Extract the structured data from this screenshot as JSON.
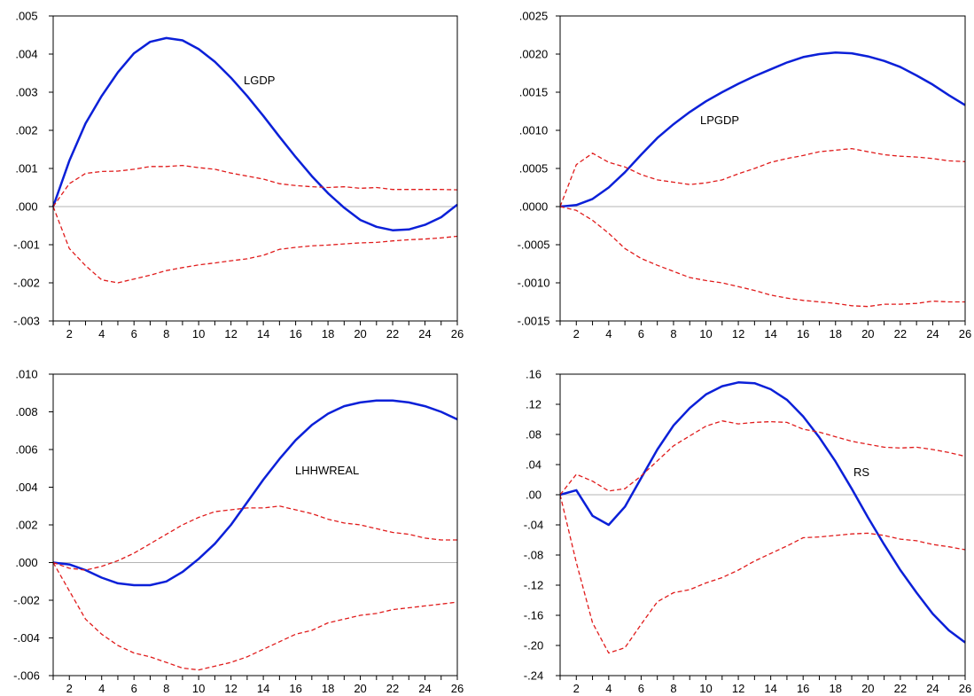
{
  "colors": {
    "response": "#0b20d8",
    "band": "#e01b1b",
    "axis": "#000000",
    "zero_line": "#b4b4b4"
  },
  "chart_data": [
    {
      "type": "line",
      "label": "LGDP",
      "x": [
        1,
        2,
        3,
        4,
        5,
        6,
        7,
        8,
        9,
        10,
        11,
        12,
        13,
        14,
        15,
        16,
        17,
        18,
        19,
        20,
        21,
        22,
        23,
        24,
        25,
        26
      ],
      "x_tick_labels": [
        "2",
        "4",
        "6",
        "8",
        "10",
        "12",
        "14",
        "16",
        "18",
        "20",
        "22",
        "24",
        "26"
      ],
      "ylim": [
        -0.003,
        0.005
      ],
      "y_tick_labels": [
        ".005",
        ".004",
        ".003",
        ".002",
        ".001",
        ".000",
        "-.001",
        "-.002",
        "-.003"
      ],
      "y_tick_values": [
        0.005,
        0.004,
        0.003,
        0.002,
        0.001,
        0.0,
        -0.001,
        -0.002,
        -0.003
      ],
      "series": [
        {
          "role": "response",
          "style": "solid",
          "values": [
            0.0,
            0.0012,
            0.00218,
            0.0029,
            0.00352,
            0.00402,
            0.00432,
            0.00442,
            0.00436,
            0.00413,
            0.0038,
            0.00338,
            0.0029,
            0.00238,
            0.00183,
            0.0013,
            0.0008,
            0.00035,
            -3e-05,
            -0.00035,
            -0.00053,
            -0.00062,
            -0.0006,
            -0.00048,
            -0.00028,
            5e-05
          ]
        },
        {
          "role": "upper_band",
          "style": "dashed",
          "values": [
            0.0,
            0.0006,
            0.00087,
            0.00092,
            0.00093,
            0.00098,
            0.00105,
            0.00105,
            0.00108,
            0.00102,
            0.00098,
            0.00088,
            0.0008,
            0.00072,
            0.0006,
            0.00055,
            0.00052,
            0.0005,
            0.00052,
            0.00048,
            0.0005,
            0.00045,
            0.00045,
            0.00045,
            0.00045,
            0.00044
          ]
        },
        {
          "role": "lower_band",
          "style": "dashed",
          "values": [
            0.0,
            -0.0011,
            -0.00155,
            -0.00192,
            -0.002,
            -0.0019,
            -0.0018,
            -0.00168,
            -0.0016,
            -0.00153,
            -0.00148,
            -0.00142,
            -0.00137,
            -0.00128,
            -0.00112,
            -0.00107,
            -0.00103,
            -0.00101,
            -0.00098,
            -0.00095,
            -0.00094,
            -0.0009,
            -0.00087,
            -0.00085,
            -0.00082,
            -0.00078
          ]
        }
      ]
    },
    {
      "type": "line",
      "label": "LPGDP",
      "x": [
        1,
        2,
        3,
        4,
        5,
        6,
        7,
        8,
        9,
        10,
        11,
        12,
        13,
        14,
        15,
        16,
        17,
        18,
        19,
        20,
        21,
        22,
        23,
        24,
        25,
        26
      ],
      "x_tick_labels": [
        "2",
        "4",
        "6",
        "8",
        "10",
        "12",
        "14",
        "16",
        "18",
        "20",
        "22",
        "24",
        "26"
      ],
      "ylim": [
        -0.0015,
        0.0025
      ],
      "y_tick_labels": [
        ".0025",
        ".0020",
        ".0015",
        ".0010",
        ".0005",
        ".0000",
        "-.0005",
        "-.0010",
        "-.0015"
      ],
      "y_tick_values": [
        0.0025,
        0.002,
        0.0015,
        0.001,
        0.0005,
        0.0,
        -0.0005,
        -0.001,
        -0.0015
      ],
      "series": [
        {
          "role": "response",
          "style": "solid",
          "values": [
            0.0,
            2e-05,
            0.0001,
            0.00025,
            0.00045,
            0.00068,
            0.0009,
            0.00108,
            0.00124,
            0.00138,
            0.0015,
            0.00161,
            0.00171,
            0.0018,
            0.00189,
            0.00196,
            0.002,
            0.00202,
            0.00201,
            0.00197,
            0.00191,
            0.00183,
            0.00172,
            0.0016,
            0.00146,
            0.00133
          ]
        },
        {
          "role": "upper_band",
          "style": "dashed",
          "values": [
            0.0,
            0.00055,
            0.0007,
            0.00058,
            0.00052,
            0.00042,
            0.00035,
            0.00032,
            0.00029,
            0.00031,
            0.00035,
            0.00043,
            0.0005,
            0.00058,
            0.00063,
            0.00067,
            0.00072,
            0.00074,
            0.00076,
            0.00072,
            0.00068,
            0.00066,
            0.00065,
            0.00063,
            0.0006,
            0.00059
          ]
        },
        {
          "role": "lower_band",
          "style": "dashed",
          "values": [
            0.0,
            -5e-05,
            -0.00018,
            -0.00035,
            -0.00055,
            -0.00068,
            -0.00077,
            -0.00085,
            -0.00093,
            -0.00097,
            -0.001,
            -0.00105,
            -0.0011,
            -0.00116,
            -0.0012,
            -0.00123,
            -0.00125,
            -0.00127,
            -0.0013,
            -0.00131,
            -0.00128,
            -0.00128,
            -0.00127,
            -0.00124,
            -0.00125,
            -0.00125
          ]
        }
      ]
    },
    {
      "type": "line",
      "label": "LHHWREAL",
      "x": [
        1,
        2,
        3,
        4,
        5,
        6,
        7,
        8,
        9,
        10,
        11,
        12,
        13,
        14,
        15,
        16,
        17,
        18,
        19,
        20,
        21,
        22,
        23,
        24,
        25,
        26
      ],
      "x_tick_labels": [
        "2",
        "4",
        "6",
        "8",
        "10",
        "12",
        "14",
        "16",
        "18",
        "20",
        "22",
        "24",
        "26"
      ],
      "ylim": [
        -0.006,
        0.01
      ],
      "y_tick_labels": [
        ".010",
        ".008",
        ".006",
        ".004",
        ".002",
        ".000",
        "-.002",
        "-.004",
        "-.006"
      ],
      "y_tick_values": [
        0.01,
        0.008,
        0.006,
        0.004,
        0.002,
        0.0,
        -0.002,
        -0.004,
        -0.006
      ],
      "series": [
        {
          "role": "response",
          "style": "solid",
          "values": [
            0.0,
            -0.0001,
            -0.0004,
            -0.0008,
            -0.0011,
            -0.0012,
            -0.0012,
            -0.001,
            -0.0005,
            0.0002,
            0.001,
            0.002,
            0.0032,
            0.0044,
            0.0055,
            0.0065,
            0.0073,
            0.0079,
            0.0083,
            0.0085,
            0.0086,
            0.0086,
            0.0085,
            0.0083,
            0.008,
            0.0076
          ]
        },
        {
          "role": "upper_band",
          "style": "dashed",
          "values": [
            0.0,
            -0.0003,
            -0.0004,
            -0.0002,
            0.0001,
            0.0005,
            0.001,
            0.0015,
            0.002,
            0.0024,
            0.0027,
            0.0028,
            0.0029,
            0.0029,
            0.003,
            0.0028,
            0.0026,
            0.0023,
            0.0021,
            0.002,
            0.0018,
            0.0016,
            0.0015,
            0.0013,
            0.0012,
            0.0012
          ]
        },
        {
          "role": "lower_band",
          "style": "dashed",
          "values": [
            0.0,
            -0.0015,
            -0.003,
            -0.0038,
            -0.0044,
            -0.0048,
            -0.005,
            -0.0053,
            -0.0056,
            -0.0057,
            -0.0055,
            -0.0053,
            -0.005,
            -0.0046,
            -0.0042,
            -0.0038,
            -0.0036,
            -0.0032,
            -0.003,
            -0.0028,
            -0.0027,
            -0.0025,
            -0.0024,
            -0.0023,
            -0.0022,
            -0.0021
          ]
        }
      ]
    },
    {
      "type": "line",
      "label": "RS",
      "x": [
        1,
        2,
        3,
        4,
        5,
        6,
        7,
        8,
        9,
        10,
        11,
        12,
        13,
        14,
        15,
        16,
        17,
        18,
        19,
        20,
        21,
        22,
        23,
        24,
        25,
        26
      ],
      "x_tick_labels": [
        "2",
        "4",
        "6",
        "8",
        "10",
        "12",
        "14",
        "16",
        "18",
        "20",
        "22",
        "24",
        "26"
      ],
      "ylim": [
        -0.24,
        0.16
      ],
      "y_tick_labels": [
        ".16",
        ".12",
        ".08",
        ".04",
        ".00",
        "-.04",
        "-.08",
        "-.12",
        "-.16",
        "-.20",
        "-.24"
      ],
      "y_tick_values": [
        0.16,
        0.12,
        0.08,
        0.04,
        0.0,
        -0.04,
        -0.08,
        -0.12,
        -0.16,
        -0.2,
        -0.24
      ],
      "series": [
        {
          "role": "response",
          "style": "solid",
          "values": [
            0.0,
            0.006,
            -0.028,
            -0.04,
            -0.016,
            0.022,
            0.06,
            0.092,
            0.115,
            0.133,
            0.144,
            0.149,
            0.148,
            0.14,
            0.126,
            0.104,
            0.076,
            0.044,
            0.008,
            -0.03,
            -0.066,
            -0.1,
            -0.13,
            -0.158,
            -0.18,
            -0.196
          ]
        },
        {
          "role": "upper_band",
          "style": "dashed",
          "values": [
            0.0,
            0.027,
            0.018,
            0.005,
            0.008,
            0.025,
            0.045,
            0.065,
            0.078,
            0.091,
            0.098,
            0.094,
            0.096,
            0.097,
            0.096,
            0.087,
            0.083,
            0.077,
            0.071,
            0.067,
            0.063,
            0.062,
            0.063,
            0.06,
            0.056,
            0.051
          ]
        },
        {
          "role": "lower_band",
          "style": "dashed",
          "values": [
            0.0,
            -0.09,
            -0.17,
            -0.21,
            -0.203,
            -0.172,
            -0.142,
            -0.13,
            -0.126,
            -0.117,
            -0.11,
            -0.1,
            -0.088,
            -0.078,
            -0.068,
            -0.057,
            -0.056,
            -0.054,
            -0.052,
            -0.051,
            -0.054,
            -0.059,
            -0.061,
            -0.066,
            -0.069,
            -0.073
          ]
        }
      ]
    }
  ]
}
